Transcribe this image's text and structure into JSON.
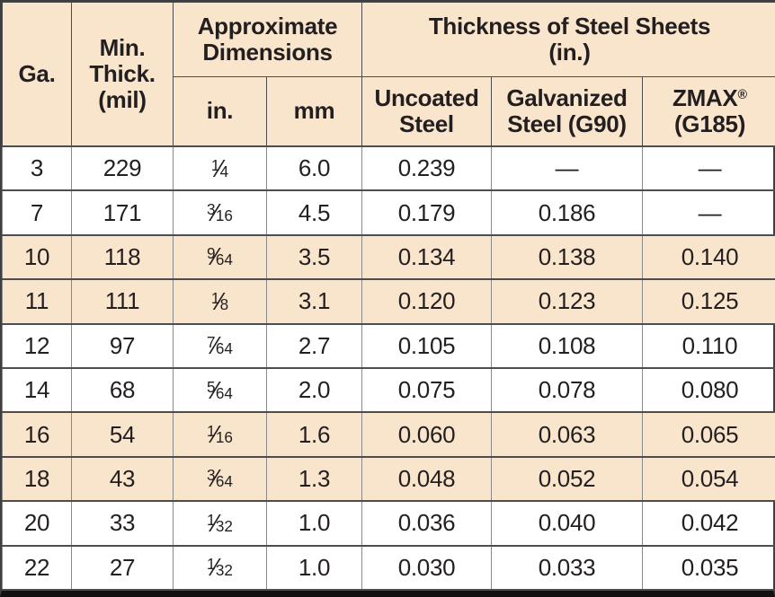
{
  "colors": {
    "shaded_row_background": "#f9e4cc",
    "header_background": "#f9e4cc",
    "text": "#231f20",
    "grid_line": "#8a8a8a",
    "grid_line_dark": "#4d4d4d",
    "bottom_bar": "#111111"
  },
  "table": {
    "header": {
      "ga": "Ga.",
      "min_thick": "Min.\nThick.\n(mil)",
      "approx_dims": "Approximate\nDimensions",
      "thickness_group": "Thickness of Steel Sheets\n(in.)",
      "in": "in.",
      "mm": "mm",
      "uncoated": "Uncoated\nSteel",
      "galvanized": "Galvanized\nSteel (G90)",
      "zmax_brand": "ZMAX",
      "zmax_reg": "®",
      "zmax_grade": "(G185)"
    },
    "rows": [
      {
        "ga": "3",
        "mil": "229",
        "in_frac": "1/4",
        "mm": "6.0",
        "uncoated": "0.239",
        "galvanized": "—",
        "zmax": "—",
        "shaded": false
      },
      {
        "ga": "7",
        "mil": "171",
        "in_frac": "3/16",
        "mm": "4.5",
        "uncoated": "0.179",
        "galvanized": "0.186",
        "zmax": "—",
        "shaded": false
      },
      {
        "ga": "10",
        "mil": "118",
        "in_frac": "9/64",
        "mm": "3.5",
        "uncoated": "0.134",
        "galvanized": "0.138",
        "zmax": "0.140",
        "shaded": true
      },
      {
        "ga": "11",
        "mil": "111",
        "in_frac": "1/8",
        "mm": "3.1",
        "uncoated": "0.120",
        "galvanized": "0.123",
        "zmax": "0.125",
        "shaded": true
      },
      {
        "ga": "12",
        "mil": "97",
        "in_frac": "7/64",
        "mm": "2.7",
        "uncoated": "0.105",
        "galvanized": "0.108",
        "zmax": "0.110",
        "shaded": false
      },
      {
        "ga": "14",
        "mil": "68",
        "in_frac": "5/64",
        "mm": "2.0",
        "uncoated": "0.075",
        "galvanized": "0.078",
        "zmax": "0.080",
        "shaded": false
      },
      {
        "ga": "16",
        "mil": "54",
        "in_frac": "1/16",
        "mm": "1.6",
        "uncoated": "0.060",
        "galvanized": "0.063",
        "zmax": "0.065",
        "shaded": true
      },
      {
        "ga": "18",
        "mil": "43",
        "in_frac": "3/64",
        "mm": "1.3",
        "uncoated": "0.048",
        "galvanized": "0.052",
        "zmax": "0.054",
        "shaded": true
      },
      {
        "ga": "20",
        "mil": "33",
        "in_frac": "1/32",
        "mm": "1.0",
        "uncoated": "0.036",
        "galvanized": "0.040",
        "zmax": "0.042",
        "shaded": false
      },
      {
        "ga": "22",
        "mil": "27",
        "in_frac": "1/32",
        "mm": "1.0",
        "uncoated": "0.030",
        "galvanized": "0.033",
        "zmax": "0.035",
        "shaded": false
      }
    ]
  }
}
